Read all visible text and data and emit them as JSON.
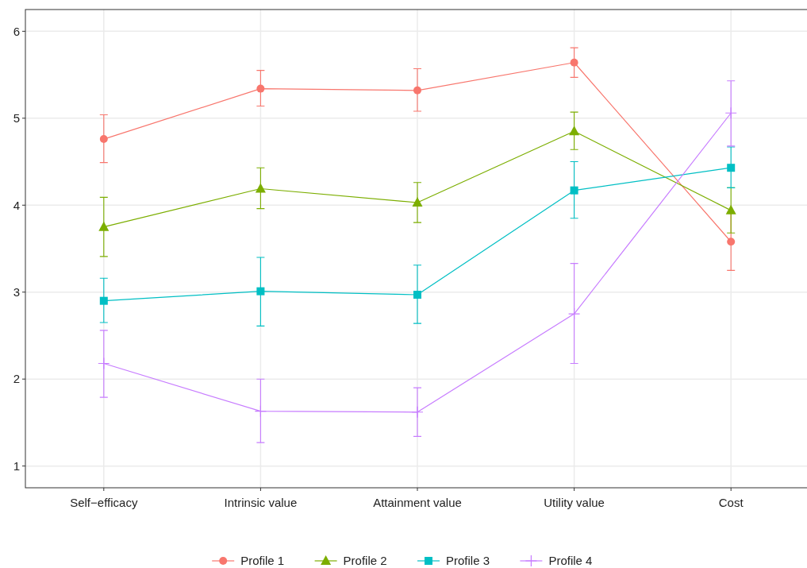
{
  "chart_data": {
    "type": "line",
    "categories": [
      "Self−efficacy",
      "Intrinsic value",
      "Attainment value",
      "Utility value",
      "Cost"
    ],
    "series": [
      {
        "name": "Profile 1",
        "color": "#f8766d",
        "marker": "circle",
        "values": [
          4.76,
          5.34,
          5.32,
          5.64,
          3.58
        ],
        "errors": [
          [
            4.49,
            5.04
          ],
          [
            5.14,
            5.55
          ],
          [
            5.08,
            5.57
          ],
          [
            5.47,
            5.81
          ],
          [
            3.25,
            3.92
          ]
        ]
      },
      {
        "name": "Profile 2",
        "color": "#7cae00",
        "marker": "triangle",
        "values": [
          3.75,
          4.19,
          4.03,
          4.85,
          3.94
        ],
        "errors": [
          [
            3.41,
            4.09
          ],
          [
            3.96,
            4.43
          ],
          [
            3.8,
            4.26
          ],
          [
            4.64,
            5.07
          ],
          [
            3.68,
            4.2
          ]
        ]
      },
      {
        "name": "Profile 3",
        "color": "#00bfc4",
        "marker": "square",
        "values": [
          2.9,
          3.01,
          2.97,
          4.17,
          4.43
        ],
        "errors": [
          [
            2.65,
            3.16
          ],
          [
            2.61,
            3.4
          ],
          [
            2.64,
            3.31
          ],
          [
            3.85,
            4.5
          ],
          [
            4.2,
            4.67
          ]
        ]
      },
      {
        "name": "Profile 4",
        "color": "#c77cff",
        "marker": "cross",
        "values": [
          2.18,
          1.63,
          1.62,
          2.75,
          5.06
        ],
        "errors": [
          [
            1.79,
            2.56
          ],
          [
            1.27,
            2.0
          ],
          [
            1.34,
            1.9
          ],
          [
            2.18,
            3.33
          ],
          [
            4.68,
            5.43
          ]
        ]
      }
    ],
    "ylim": [
      0.75,
      6.25
    ],
    "yticks": [
      1,
      2,
      3,
      4,
      5,
      6
    ],
    "grid": true,
    "legend": "bottom"
  }
}
